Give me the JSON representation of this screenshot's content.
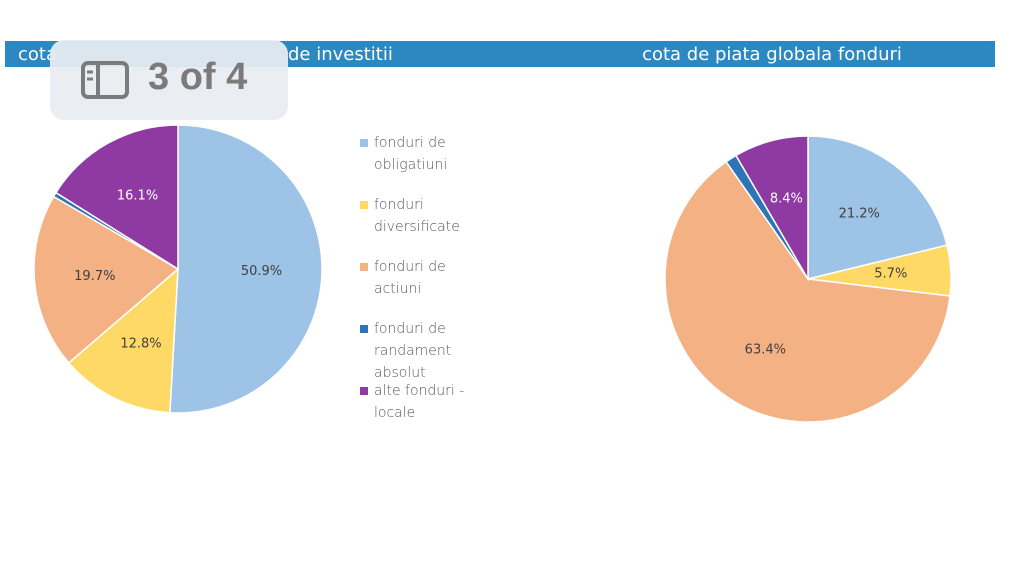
{
  "chart_data": [
    {
      "type": "pie",
      "title_fragments": [
        "cota",
        "de investitii"
      ],
      "categories": [
        "fonduri de obligatiuni",
        "fonduri diversificate",
        "fonduri de actiuni",
        "fonduri de randament absolut",
        "alte fonduri - locale"
      ],
      "values": [
        50.9,
        12.8,
        19.7,
        0.5,
        16.1
      ],
      "value_labels": [
        "50.9%",
        "12.8%",
        "19.7%",
        null,
        "16.1%"
      ],
      "colors": [
        "#9dc3e6",
        "#ffd966",
        "#f4b183",
        "#2e75b6",
        "#8e3aa2"
      ]
    },
    {
      "type": "pie",
      "title": "cota de piata globala fonduri",
      "values": [
        21.2,
        5.7,
        63.4,
        1.3,
        8.4
      ],
      "value_labels": [
        "21.2%",
        "5.7%",
        "63.4%",
        null,
        "8.4%"
      ],
      "colors": [
        "#9dc3e6",
        "#ffd966",
        "#f4b183",
        "#2e75b6",
        "#8e3aa2"
      ]
    }
  ],
  "overlay": {
    "label": "3 of 4"
  }
}
